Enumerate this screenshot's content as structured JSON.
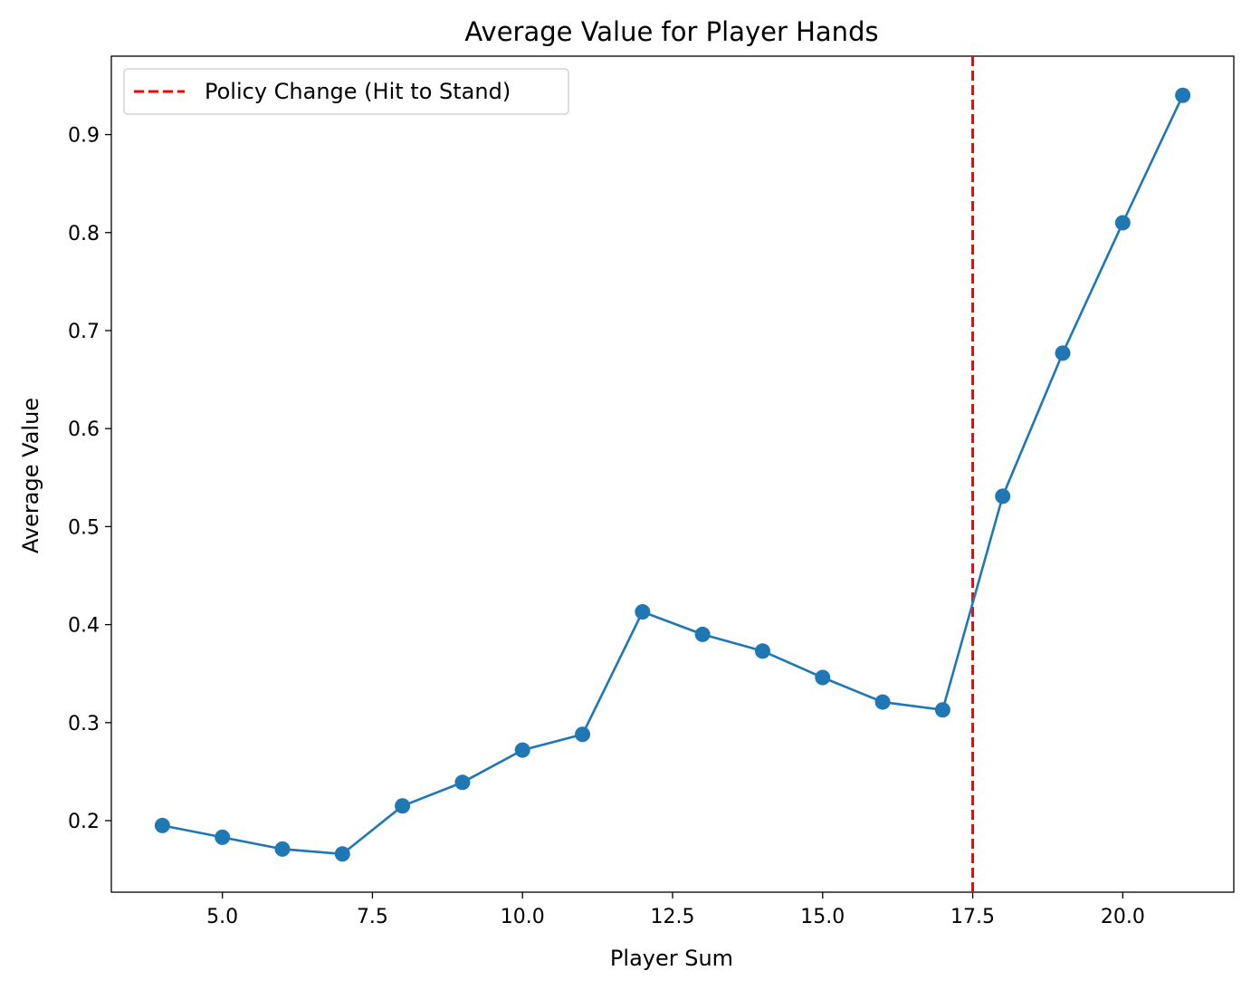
{
  "chart_data": {
    "type": "line",
    "title": "Average Value for Player Hands",
    "xlabel": "Player Sum",
    "ylabel": "Average Value",
    "xlim": [
      3.15,
      21.85
    ],
    "ylim": [
      0.127,
      0.98
    ],
    "xticks": [
      5.0,
      7.5,
      10.0,
      12.5,
      15.0,
      17.5,
      20.0
    ],
    "xtick_labels": [
      "5.0",
      "7.5",
      "10.0",
      "12.5",
      "15.0",
      "17.5",
      "20.0"
    ],
    "yticks": [
      0.2,
      0.3,
      0.4,
      0.5,
      0.6,
      0.7,
      0.8,
      0.9
    ],
    "ytick_labels": [
      "0.2",
      "0.3",
      "0.4",
      "0.5",
      "0.6",
      "0.7",
      "0.8",
      "0.9"
    ],
    "grid": false,
    "legend_position": "upper-left",
    "series": [
      {
        "color": "#1f77b4",
        "marker": "circle",
        "x": [
          4,
          5,
          6,
          7,
          8,
          9,
          10,
          11,
          12,
          13,
          14,
          15,
          16,
          17,
          18,
          19,
          20,
          21
        ],
        "y": [
          0.195,
          0.183,
          0.171,
          0.166,
          0.215,
          0.239,
          0.272,
          0.288,
          0.413,
          0.39,
          0.373,
          0.346,
          0.321,
          0.313,
          0.531,
          0.677,
          0.81,
          0.94
        ]
      }
    ],
    "reference_lines": [
      {
        "orientation": "vertical",
        "x": 17.5,
        "label": "Policy Change (Hit to Stand)",
        "color": "#ff0000",
        "style": "dashed"
      }
    ]
  }
}
